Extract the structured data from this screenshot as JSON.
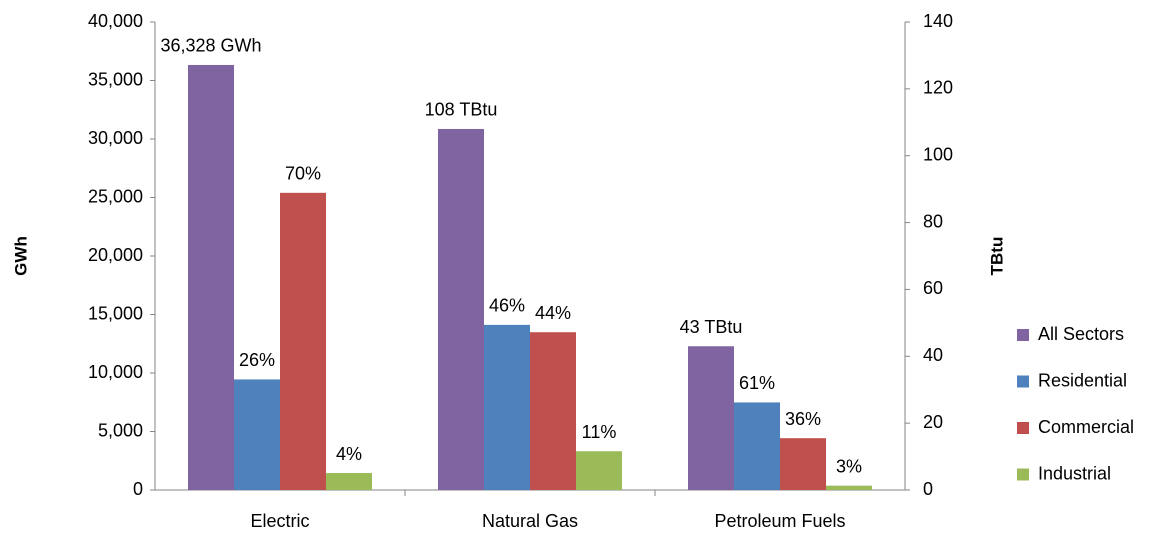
{
  "chart_data": {
    "type": "bar",
    "categories": [
      "Electric",
      "Natural Gas",
      "Petroleum Fuels"
    ],
    "category_axes": [
      "y",
      "y2",
      "y2"
    ],
    "ylabel": "GWh",
    "y2label": "TBtu",
    "ylim": [
      0,
      40000
    ],
    "yticks": [
      0,
      {
        "value": 5000,
        "label": "5,000"
      },
      {
        "value": 10000,
        "label": "10,000"
      },
      {
        "value": 15000,
        "label": "15,000"
      },
      {
        "value": 20000,
        "label": "20,000"
      },
      {
        "value": 25000,
        "label": "25,000"
      },
      {
        "value": 30000,
        "label": "30,000"
      },
      {
        "value": 35000,
        "label": "35,000"
      },
      {
        "value": 40000,
        "label": "40,000"
      }
    ],
    "y2lim": [
      0,
      140
    ],
    "y2ticks": [
      0,
      20,
      40,
      60,
      80,
      100,
      120,
      140
    ],
    "grid": false,
    "legend": "right",
    "series": [
      {
        "name": "All Sectors",
        "color": "#8064a2",
        "values": [
          36328,
          108,
          43
        ],
        "value_labels": [
          "36,328 GWh",
          "108 TBtu",
          "43 TBtu"
        ]
      },
      {
        "name": "Residential",
        "color": "#4f81bd",
        "values": [
          9450,
          49.4,
          26.2
        ],
        "value_labels": [
          "26%",
          "46%",
          "61%"
        ]
      },
      {
        "name": "Commercial",
        "color": "#c0504d",
        "values": [
          25400,
          47.2,
          15.5
        ],
        "value_labels": [
          "70%",
          "44%",
          "36%"
        ]
      },
      {
        "name": "Industrial",
        "color": "#9bbb59",
        "values": [
          1450,
          11.6,
          1.3
        ],
        "value_labels": [
          "4%",
          "11%",
          "3%"
        ]
      }
    ]
  }
}
